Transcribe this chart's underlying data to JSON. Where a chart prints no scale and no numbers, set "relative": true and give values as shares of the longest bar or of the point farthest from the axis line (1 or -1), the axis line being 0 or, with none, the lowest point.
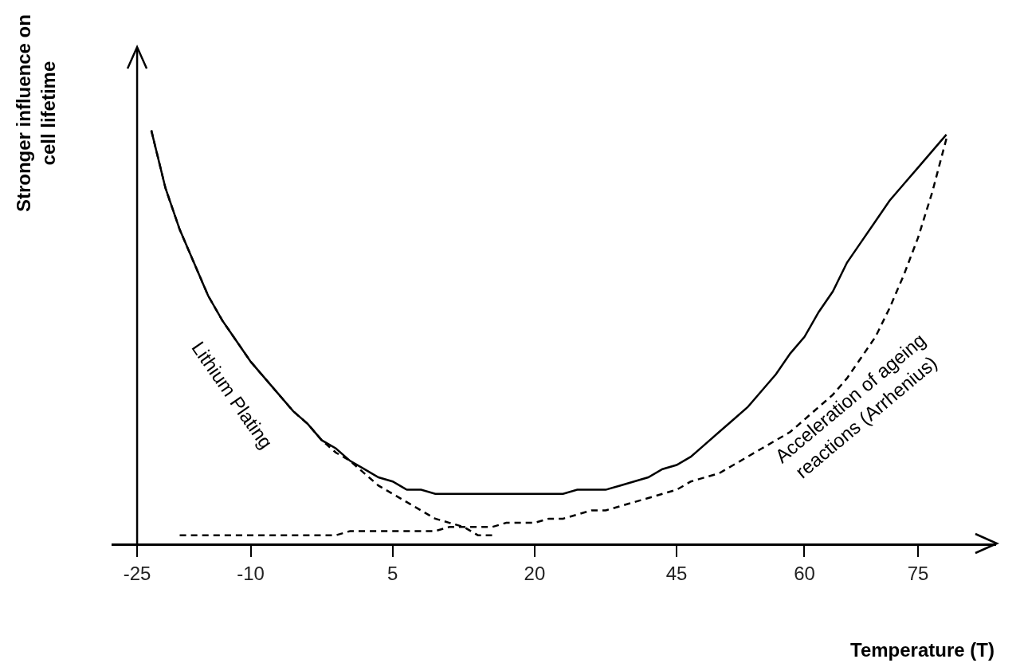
{
  "chart_data": {
    "type": "line",
    "relative": true,
    "xlabel": "Temperature (T)",
    "ylabel": "Stronger influence on cell lifetime",
    "categories": [
      "-25",
      null,
      null,
      null,
      null,
      null,
      null,
      null,
      "-10",
      null,
      null,
      null,
      null,
      null,
      null,
      null,
      null,
      null,
      "5",
      null,
      null,
      null,
      null,
      null,
      null,
      null,
      null,
      null,
      "20",
      null,
      null,
      null,
      null,
      null,
      null,
      null,
      null,
      null,
      "45",
      null,
      null,
      null,
      null,
      null,
      null,
      null,
      null,
      "60",
      null,
      null,
      null,
      null,
      null,
      null,
      null,
      "75",
      null,
      null
    ],
    "series": [
      {
        "color": "#000000",
        "line_style": "solid",
        "values": [
          null,
          1.0,
          0.86,
          0.76,
          0.68,
          0.6,
          0.54,
          0.49,
          0.44,
          0.4,
          0.36,
          0.32,
          0.29,
          0.25,
          0.23,
          0.2,
          0.18,
          0.16,
          0.15,
          0.13,
          0.13,
          0.12,
          0.12,
          0.12,
          0.12,
          0.12,
          0.12,
          0.12,
          0.12,
          0.12,
          0.12,
          0.13,
          0.13,
          0.13,
          0.14,
          0.15,
          0.16,
          0.18,
          0.19,
          0.21,
          0.24,
          0.27,
          0.3,
          0.33,
          0.37,
          0.41,
          0.46,
          0.5,
          0.56,
          0.61,
          0.68,
          0.73,
          0.78,
          0.83,
          0.87,
          0.91,
          0.95,
          0.99
        ]
      },
      {
        "name": "Lithium Plating",
        "color": "#000000",
        "line_style": "dashed",
        "values": [
          null,
          1.0,
          0.86,
          0.76,
          0.68,
          0.6,
          0.54,
          0.49,
          0.44,
          0.4,
          0.36,
          0.32,
          0.29,
          0.25,
          0.22,
          0.2,
          0.17,
          0.14,
          0.12,
          0.1,
          0.08,
          0.06,
          0.05,
          0.04,
          0.02,
          0.02,
          null,
          null,
          null,
          null,
          null,
          null,
          null,
          null,
          null,
          null,
          null,
          null,
          null,
          null,
          null,
          null,
          null,
          null,
          null,
          null,
          null,
          null,
          null,
          null,
          null,
          null,
          null,
          null,
          null,
          null,
          null,
          null
        ]
      },
      {
        "name": "Acceleration of ageing reactions (Arrhenius)",
        "color": "#000000",
        "line_style": "dashed",
        "values": [
          null,
          null,
          null,
          0.02,
          0.02,
          0.02,
          0.02,
          0.02,
          0.02,
          0.02,
          0.02,
          0.02,
          0.02,
          0.02,
          0.02,
          0.03,
          0.03,
          0.03,
          0.03,
          0.03,
          0.03,
          0.03,
          0.04,
          0.04,
          0.04,
          0.04,
          0.05,
          0.05,
          0.05,
          0.06,
          0.06,
          0.07,
          0.08,
          0.08,
          0.09,
          0.1,
          0.11,
          0.12,
          0.13,
          0.15,
          0.16,
          0.17,
          0.19,
          0.21,
          0.23,
          0.25,
          0.27,
          0.3,
          0.33,
          0.36,
          0.4,
          0.45,
          0.5,
          0.57,
          0.65,
          0.74,
          0.85,
          0.98
        ]
      }
    ]
  }
}
